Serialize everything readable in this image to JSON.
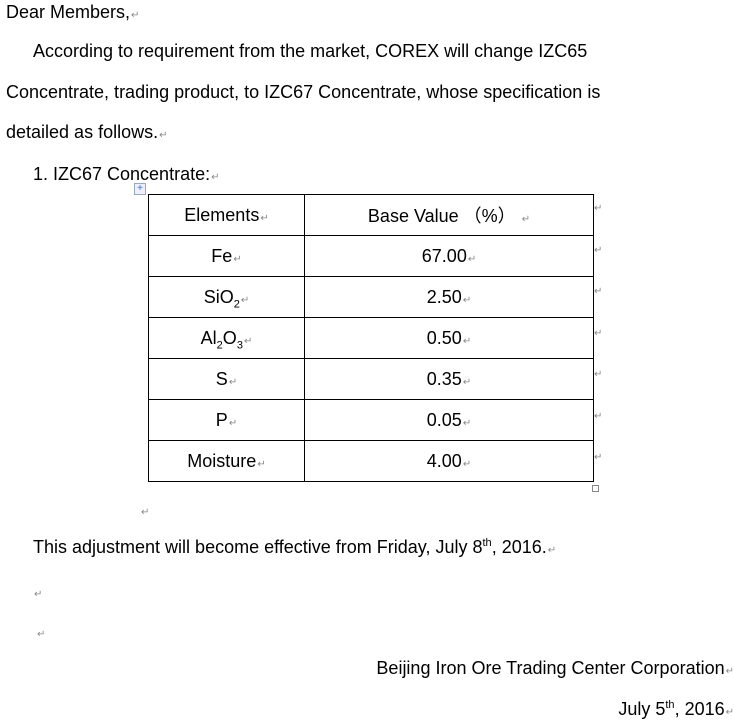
{
  "salutation": "Dear Members,",
  "para1_line1": "According to requirement from the market, COREX will change IZC65",
  "para1_line2": "Concentrate, trading product, to IZC67 Concentrate, whose specification is",
  "para1_line3": "detailed as follows.",
  "list_item": "1. IZC67 Concentrate:",
  "paragraph_mark": "↵",
  "table": {
    "headers": [
      "Elements",
      "Base Value （%）"
    ],
    "rows": [
      {
        "element": "Fe",
        "sub1": "",
        "mid": "",
        "sub2": "",
        "value": "67.00"
      },
      {
        "element": "SiO",
        "sub1": "2",
        "mid": "",
        "sub2": "",
        "value": "2.50"
      },
      {
        "element": "Al",
        "sub1": "2",
        "mid": "O",
        "sub2": "3",
        "value": "0.50"
      },
      {
        "element": "S",
        "sub1": "",
        "mid": "",
        "sub2": "",
        "value": "0.35"
      },
      {
        "element": "P",
        "sub1": "",
        "mid": "",
        "sub2": "",
        "value": "0.05"
      },
      {
        "element": "Moisture",
        "sub1": "",
        "mid": "",
        "sub2": "",
        "value": "4.00"
      }
    ]
  },
  "effective": {
    "pre": "This adjustment will become effective from Friday, July 8",
    "sup": "th",
    "post": ", 2016."
  },
  "signature": "Beijing Iron Ore Trading Center Corporation",
  "date": {
    "pre": "July 5",
    "sup": "th",
    "post": ",  2016"
  }
}
